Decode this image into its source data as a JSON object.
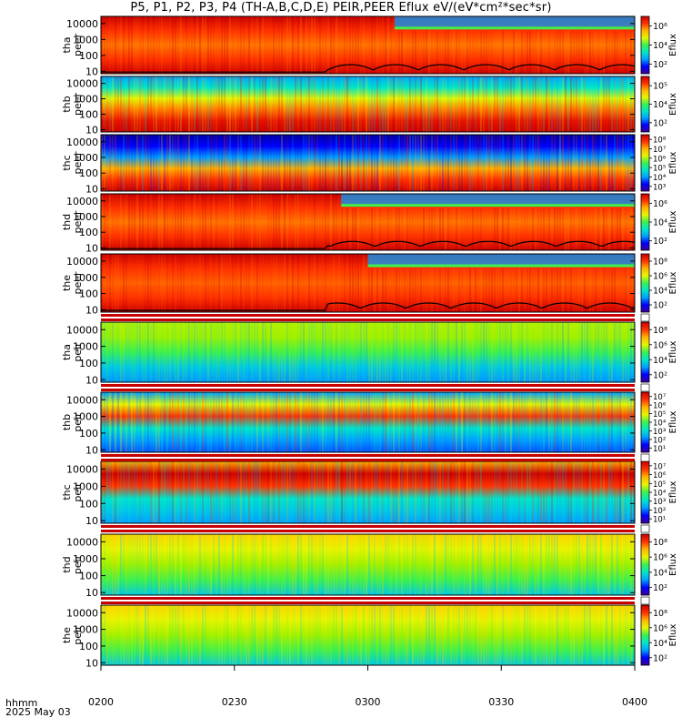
{
  "title": "P5, P1, P2, P3, P4 (TH-A,B,C,D,E) PEIR,PEER Eflux eV/(eV*cm²*sec*sr)",
  "footer": {
    "time_label": "hhmm",
    "date_label": "2025 May 03"
  },
  "chart_data": {
    "type": "heatmap",
    "x_ticks": [
      "0200",
      "0230",
      "0300",
      "0330",
      "0400"
    ],
    "x_range": [
      "02:00",
      "04:00"
    ],
    "y_scale": "log",
    "y_ticks": [
      "10",
      "100",
      "1000",
      "10000"
    ],
    "colorbar_label": "Eflux",
    "colormap": [
      "#3c0096",
      "#0000ff",
      "#00a0ff",
      "#00e6c8",
      "#3cf050",
      "#e6f500",
      "#ffb400",
      "#ff3200",
      "#c80000"
    ],
    "panels": [
      {
        "probe": "tha",
        "species": "peer",
        "cbar_ticks": [
          "10²",
          "10⁴",
          "10⁶"
        ],
        "has_threshold_line": true
      },
      {
        "probe": "thb",
        "species": "peer",
        "cbar_ticks": [
          "10²",
          "10⁴",
          "10⁵"
        ],
        "has_threshold_line": false
      },
      {
        "probe": "thc",
        "species": "peer",
        "cbar_ticks": [
          "10³",
          "10⁴",
          "10⁵",
          "10⁶",
          "10⁷",
          "10⁸"
        ],
        "has_threshold_line": false
      },
      {
        "probe": "thd",
        "species": "peer",
        "cbar_ticks": [
          "10²",
          "10⁴",
          "10⁶"
        ],
        "has_threshold_line": true
      },
      {
        "probe": "the",
        "species": "peer",
        "cbar_ticks": [
          "10²",
          "10⁴",
          "10⁶",
          "10⁸"
        ],
        "has_threshold_line": true
      },
      {
        "probe": "tha",
        "species": "peir",
        "cbar_ticks": [
          "10²",
          "10⁴",
          "10⁶",
          "10⁸"
        ],
        "has_threshold_line": false
      },
      {
        "probe": "thb",
        "species": "peir",
        "cbar_ticks": [
          "10¹",
          "10²",
          "10³",
          "10⁴",
          "10⁵",
          "10⁶",
          "10⁷"
        ],
        "has_threshold_line": false
      },
      {
        "probe": "thc",
        "species": "peir",
        "cbar_ticks": [
          "10¹",
          "10²",
          "10³",
          "10⁴",
          "10⁵",
          "10⁶",
          "10⁷"
        ],
        "has_threshold_line": false
      },
      {
        "probe": "thd",
        "species": "peir",
        "cbar_ticks": [
          "10²",
          "10⁴",
          "10⁶",
          "10⁸"
        ],
        "has_threshold_line": false
      },
      {
        "probe": "the",
        "species": "peir",
        "cbar_ticks": [
          "10²",
          "10⁴",
          "10⁶",
          "10⁸"
        ],
        "has_threshold_line": false
      }
    ]
  }
}
